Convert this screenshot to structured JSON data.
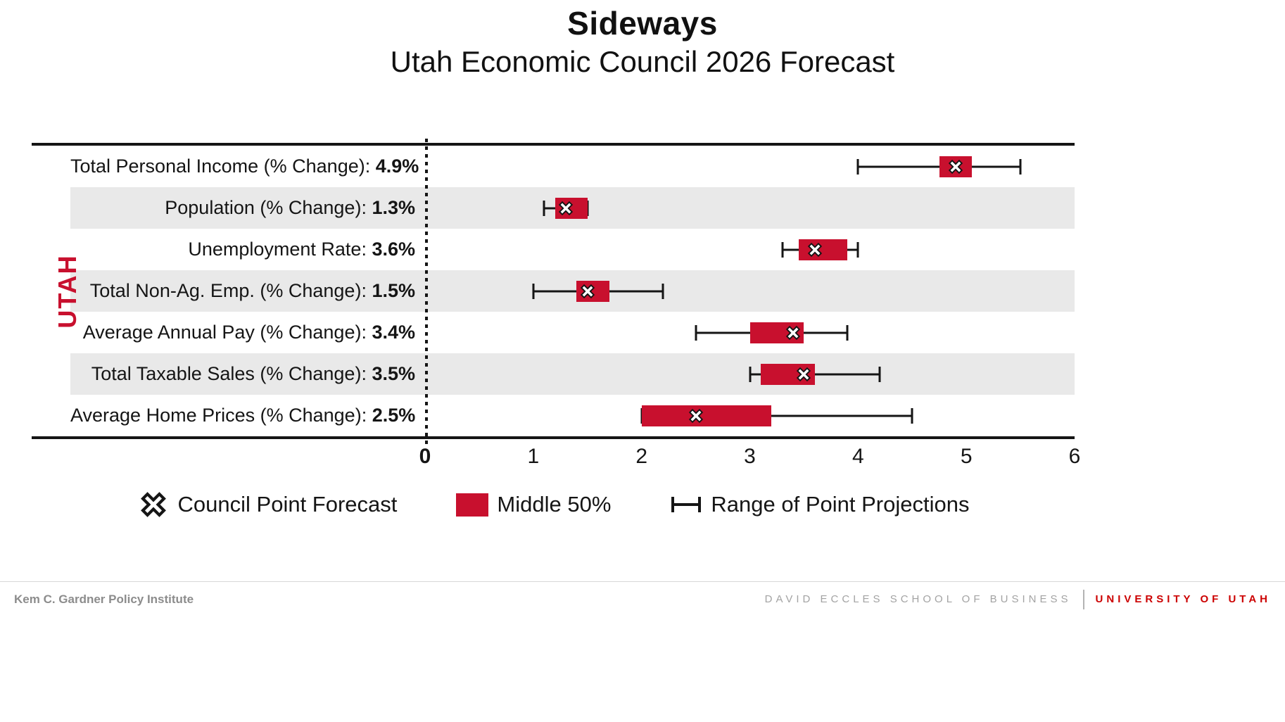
{
  "title": "Sideways",
  "subtitle": "Utah Economic Council 2026 Forecast",
  "axis_group_label": "UTAH",
  "chart_data": {
    "type": "box-whisker-horizontal",
    "xlim": [
      0,
      6
    ],
    "x_ticks": [
      0,
      1,
      2,
      3,
      4,
      5,
      6
    ],
    "rows": [
      {
        "label": "Total Personal Income (% Change):",
        "value_label": "4.9%",
        "point": 4.9,
        "box": [
          4.75,
          5.05
        ],
        "range": [
          4.0,
          5.5
        ],
        "band": false
      },
      {
        "label": "Population (% Change):",
        "value_label": "1.3%",
        "point": 1.3,
        "box": [
          1.2,
          1.5
        ],
        "range": [
          1.1,
          1.5
        ],
        "band": true
      },
      {
        "label": "Unemployment Rate:",
        "value_label": "3.6%",
        "point": 3.6,
        "box": [
          3.45,
          3.9
        ],
        "range": [
          3.3,
          4.0
        ],
        "band": false
      },
      {
        "label": "Total Non-Ag. Emp. (% Change):",
        "value_label": "1.5%",
        "point": 1.5,
        "box": [
          1.4,
          1.7
        ],
        "range": [
          1.0,
          2.2
        ],
        "band": true
      },
      {
        "label": "Average Annual Pay (% Change):",
        "value_label": "3.4%",
        "point": 3.4,
        "box": [
          3.0,
          3.5
        ],
        "range": [
          2.5,
          3.9
        ],
        "band": false
      },
      {
        "label": "Total Taxable Sales (% Change):",
        "value_label": "3.5%",
        "point": 3.5,
        "box": [
          3.1,
          3.6
        ],
        "range": [
          3.0,
          4.2
        ],
        "band": true
      },
      {
        "label": "Average Home Prices (% Change):",
        "value_label": "2.5%",
        "point": 2.5,
        "box": [
          2.0,
          3.2
        ],
        "range": [
          2.0,
          4.5
        ],
        "band": false
      }
    ]
  },
  "legend": {
    "point": "Council Point Forecast",
    "box": "Middle 50%",
    "range": "Range of Point Projections"
  },
  "footer": {
    "left": "Kem C. Gardner Policy Institute",
    "center": "DAVID ECCLES SCHOOL OF BUSINESS",
    "right": "UNIVERSITY OF UTAH"
  },
  "colors": {
    "accent_red": "#C8102E",
    "univ_red": "#CC0000",
    "band_gray": "#E9E9E9"
  }
}
